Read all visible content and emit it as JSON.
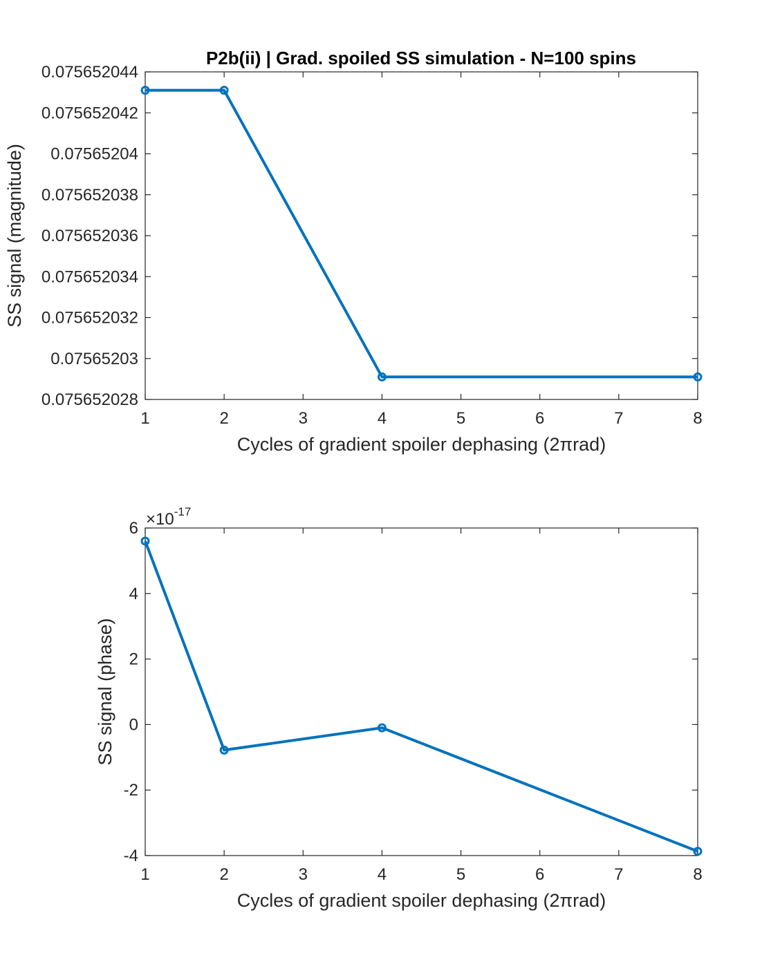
{
  "figure_title": "P2b(ii) | Grad. spoiled SS simulation - N=100 spins",
  "colors": {
    "series": "#0072BD",
    "axes": "#262626",
    "background": "#ffffff"
  },
  "chart_data": [
    {
      "type": "line",
      "title": "P2b(ii) | Grad. spoiled SS simulation - N=100 spins",
      "xlabel": "Cycles of gradient spoiler dephasing (2πrad)",
      "ylabel": "SS signal (magnitude)",
      "x": [
        1,
        2,
        4,
        8
      ],
      "series": [
        {
          "values": [
            0.0756520431,
            0.0756520431,
            0.0756520291,
            0.0756520291
          ],
          "marker": "circle"
        }
      ],
      "xlim": [
        1,
        8
      ],
      "ylim": [
        0.075652028,
        0.075652044
      ],
      "xticks": [
        1,
        2,
        3,
        4,
        5,
        6,
        7,
        8
      ],
      "xtick_labels": [
        "1",
        "2",
        "3",
        "4",
        "5",
        "6",
        "7",
        "8"
      ],
      "yticks": [
        0.075652028,
        0.07565203,
        0.075652032,
        0.075652034,
        0.075652036,
        0.075652038,
        0.07565204,
        0.075652042,
        0.075652044
      ],
      "ytick_labels": [
        "0.075652028",
        "0.07565203",
        "0.075652032",
        "0.075652034",
        "0.075652036",
        "0.075652038",
        "0.07565204",
        "0.075652042",
        "0.075652044"
      ],
      "grid": false,
      "legend": "none"
    },
    {
      "type": "line",
      "xlabel": "Cycles of gradient spoiler dephasing (2πrad)",
      "ylabel": "SS signal (phase)",
      "x": [
        1,
        2,
        4,
        8
      ],
      "series": [
        {
          "values": [
            5.6e-17,
            -7.8e-18,
            -1e-18,
            -3.87e-17
          ],
          "marker": "circle"
        }
      ],
      "xlim": [
        1,
        8
      ],
      "ylim": [
        -4e-17,
        6e-17
      ],
      "y_exponent_label": {
        "base": "×10",
        "power": "-17"
      },
      "xticks": [
        1,
        2,
        3,
        4,
        5,
        6,
        7,
        8
      ],
      "xtick_labels": [
        "1",
        "2",
        "3",
        "4",
        "5",
        "6",
        "7",
        "8"
      ],
      "yticks": [
        -4e-17,
        -2e-17,
        0,
        2e-17,
        4e-17,
        6e-17
      ],
      "ytick_labels": [
        "-4",
        "-2",
        "0",
        "2",
        "4",
        "6"
      ],
      "grid": false,
      "legend": "none"
    }
  ]
}
